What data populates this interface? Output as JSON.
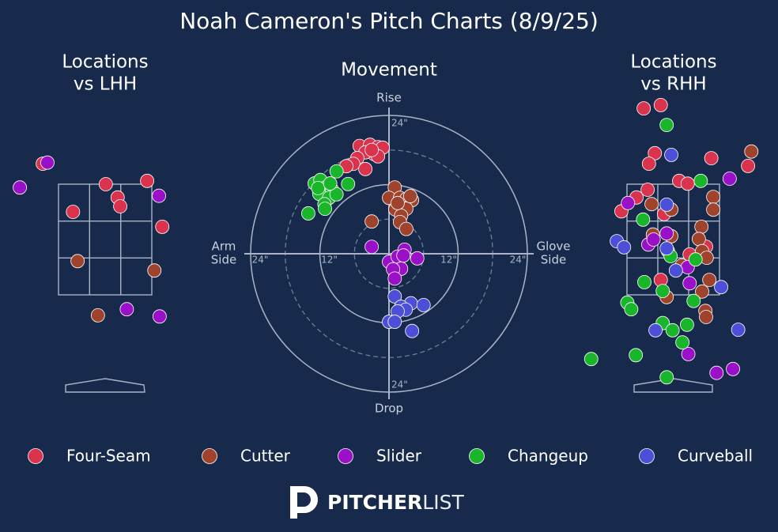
{
  "title": "Noah Cameron's Pitch Charts (8/9/25)",
  "legend": {
    "position": "bottom",
    "entries": [
      {
        "name": "Four-Seam",
        "color": "#d9334d"
      },
      {
        "name": "Cutter",
        "color": "#a0432d"
      },
      {
        "name": "Slider",
        "color": "#9a10c8"
      },
      {
        "name": "Changeup",
        "color": "#19b52a"
      },
      {
        "name": "Curveball",
        "color": "#4c4fd8"
      }
    ]
  },
  "logo": {
    "bold": "PITCHER",
    "light": "LIST"
  },
  "chart_data": [
    {
      "type": "scatter",
      "title": [
        "Locations",
        "vs LHH"
      ],
      "xlim": [
        -1.3,
        1.3
      ],
      "ylim": [
        -0.3,
        5.0
      ],
      "series": [
        {
          "x": [
            -0.95,
            0.01,
            0.19,
            0.23,
            -0.49,
            0.64,
            0.87
          ],
          "y": [
            3.87,
            3.5,
            3.26,
            3.1,
            3.0,
            3.56,
            2.73
          ]
        },
        {
          "x": [
            -0.42,
            0.75,
            -0.11
          ],
          "y": [
            2.11,
            1.94,
            1.13
          ]
        },
        {
          "x": [
            -0.88,
            -1.3,
            0.82,
            0.33,
            0.83
          ],
          "y": [
            3.89,
            3.44,
            3.29,
            1.24,
            1.11
          ]
        },
        {
          "x": [],
          "y": []
        },
        {
          "x": [],
          "y": []
        }
      ]
    },
    {
      "type": "scatter",
      "title": "Movement",
      "xlim": [
        -24,
        24
      ],
      "ylim": [
        -24,
        24
      ],
      "axis_labels": {
        "top": "Rise",
        "bottom": "Drop",
        "left": [
          "Arm",
          "Side"
        ],
        "right": [
          "Glove",
          "Side"
        ]
      },
      "xticks": [
        {
          "value": -24,
          "label": "24\""
        },
        {
          "value": -12,
          "label": "12\""
        },
        {
          "value": 12,
          "label": "12\""
        },
        {
          "value": 24,
          "label": "24\""
        }
      ],
      "yticks": [
        {
          "value": 24,
          "label": "24\""
        },
        {
          "value": -24,
          "label": "24\""
        }
      ],
      "series": [
        {
          "x": [
            -5.1,
            -3.3,
            -1.9,
            -1.1,
            -2.6,
            -4.1,
            -5.5,
            -6.2,
            -7.4,
            -4.1,
            -1.9,
            -3.0
          ],
          "y": [
            18.7,
            18.9,
            18.5,
            18.4,
            17.3,
            17.6,
            16.6,
            15.6,
            15.2,
            14.7,
            16.9,
            18.0
          ]
        },
        {
          "x": [
            1.0,
            0,
            1.9,
            3.0,
            4.0,
            1.9,
            3.0,
            1.1,
            2.1,
            1.9,
            3.0,
            -3.0,
            3.7,
            1.5
          ],
          "y": [
            11.5,
            9.7,
            9.7,
            9.5,
            9.3,
            8.1,
            7.8,
            7.7,
            6.6,
            5.5,
            4.3,
            5.6,
            10.0,
            8.8
          ]
        },
        {
          "x": [
            -3.0,
            0,
            1.5,
            2.7,
            4.9,
            2.1,
            0.7,
            1.0,
            2.5
          ],
          "y": [
            1.2,
            -1.4,
            -0.5,
            0.7,
            -0.8,
            -2.6,
            -2.7,
            -4.3,
            -0.3
          ]
        },
        {
          "x": [
            -12.9,
            -11.9,
            -11.0,
            -9.9,
            -9.1,
            -7.1,
            -12.1,
            -10.4,
            -9.1,
            -11.2,
            -11.1,
            -14.0,
            -12.3,
            -10.2
          ],
          "y": [
            12.2,
            12.8,
            11.5,
            11.1,
            14.3,
            12.1,
            10.4,
            9.7,
            10.3,
            8.6,
            7.8,
            7.0,
            11.4,
            12.2
          ]
        },
        {
          "x": [
            1.0,
            3.8,
            6.0,
            2.1,
            2.9,
            1.5,
            0,
            1.0,
            4.0
          ],
          "y": [
            -7.4,
            -8.6,
            -8.9,
            -9.2,
            -9.7,
            -10.0,
            -11.8,
            -11.8,
            -13.4
          ]
        }
      ]
    },
    {
      "type": "scatter",
      "title": [
        "Locations",
        "vs RHH"
      ],
      "xlim": [
        -1.3,
        1.3
      ],
      "ylim": [
        -0.3,
        5.0
      ],
      "series": [
        {
          "x": [
            -0.45,
            -0.19,
            -0.28,
            -0.37,
            0.58,
            1.14,
            0.09,
            0.22,
            -0.39,
            -0.56,
            -0.79,
            -0.14,
            -0.19,
            0.25,
            0.5
          ],
          "y": [
            4.87,
            4.93,
            4.06,
            3.87,
            3.97,
            3.83,
            3.56,
            3.51,
            3.4,
            3.26,
            3.01,
            2.96,
            1.77,
            2.23,
            2.37
          ]
        },
        {
          "x": [
            1.19,
            0.61,
            0.61,
            -0.33,
            -0.03,
            0.43,
            0.39,
            0.44,
            0.51,
            -0.31,
            -0.03,
            0.13,
            0.55,
            0.44,
            -0.1,
            0.49,
            0.5
          ],
          "y": [
            4.09,
            3.27,
            3.04,
            3.14,
            3.04,
            2.73,
            2.51,
            2.29,
            2.17,
            2.59,
            2.56,
            2.03,
            1.77,
            1.56,
            1.46,
            1.21,
            1.1
          ]
        },
        {
          "x": [
            -0.69,
            0.86,
            -0.1,
            -0.38,
            -0.3,
            0.22,
            0.25,
            0.23,
            0.66,
            0.91
          ],
          "y": [
            3.16,
            3.6,
            2.61,
            2.41,
            2.5,
            2.0,
            1.71,
            0.43,
            0.09,
            0.16
          ]
        },
        {
          "x": [
            -0.1,
            0.42,
            -0.46,
            -0.08,
            -0.04,
            0.34,
            -0.44,
            -0.16,
            0.31,
            -0.7,
            -0.64,
            -0.16,
            -0.01,
            0.21,
            0.14,
            -0.57,
            -1.25,
            -0.1
          ],
          "y": [
            4.57,
            3.56,
            2.86,
            2.29,
            2.2,
            2.14,
            1.73,
            1.57,
            1.39,
            1.36,
            1.24,
            0.99,
            0.86,
            0.96,
            0.64,
            0.41,
            0.34,
            0.01
          ]
        },
        {
          "x": [
            -0.03,
            -0.1,
            -0.86,
            -0.75,
            -0.1,
            0.04,
            0.73,
            -0.27,
            0.99
          ],
          "y": [
            4.03,
            3.13,
            2.47,
            2.36,
            2.34,
            1.94,
            1.64,
            0.86,
            0.87
          ]
        }
      ]
    }
  ]
}
